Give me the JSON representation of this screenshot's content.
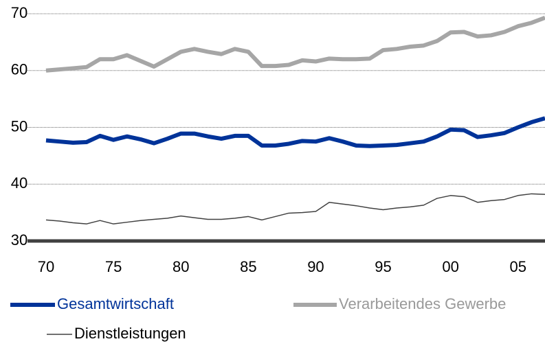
{
  "chart_data": {
    "type": "line",
    "x": [
      1970,
      1971,
      1972,
      1973,
      1974,
      1975,
      1976,
      1977,
      1978,
      1979,
      1980,
      1981,
      1982,
      1983,
      1984,
      1985,
      1986,
      1987,
      1988,
      1989,
      1990,
      1991,
      1992,
      1993,
      1994,
      1995,
      1996,
      1997,
      1998,
      1999,
      2000,
      2001,
      2002,
      2003,
      2004,
      2005,
      2006,
      2007
    ],
    "series": [
      {
        "name": "Gesamtwirtschaft",
        "color": "#003399",
        "width": 6,
        "values": [
          47.7,
          47.5,
          47.3,
          47.4,
          48.5,
          47.8,
          48.4,
          47.9,
          47.2,
          48,
          48.9,
          48.9,
          48.4,
          48,
          48.5,
          48.5,
          46.8,
          46.8,
          47.1,
          47.6,
          47.5,
          48.1,
          47.5,
          46.8,
          46.7,
          46.8,
          46.9,
          47.2,
          47.5,
          48.4,
          49.6,
          49.5,
          48.3,
          48.6,
          49,
          50,
          50.9,
          51.6
        ]
      },
      {
        "name": "Verarbeitendes Gewerbe",
        "color": "#a6a6a6",
        "width": 6,
        "values": [
          60,
          60.2,
          60.4,
          60.6,
          62,
          62,
          62.7,
          61.7,
          60.7,
          62,
          63.3,
          63.8,
          63.3,
          62.9,
          63.8,
          63.3,
          60.8,
          60.8,
          61,
          61.8,
          61.6,
          62.1,
          62,
          62,
          62.1,
          63.6,
          63.8,
          64.2,
          64.4,
          65.2,
          66.7,
          66.8,
          66,
          66.2,
          66.8,
          67.8,
          68.4,
          69.3
        ]
      },
      {
        "name": "Dienstleistungen",
        "color": "#404040",
        "width": 1.5,
        "values": [
          33.7,
          33.5,
          33.2,
          33,
          33.6,
          33,
          33.3,
          33.6,
          33.8,
          34,
          34.4,
          34.1,
          33.8,
          33.8,
          34,
          34.3,
          33.7,
          34.3,
          34.9,
          35,
          35.2,
          36.8,
          36.5,
          36.2,
          35.8,
          35.5,
          35.8,
          36,
          36.3,
          37.5,
          38,
          37.8,
          36.8,
          37.1,
          37.3,
          38,
          38.3,
          38.2
        ]
      }
    ],
    "xlim": [
      1970,
      2007
    ],
    "xticks": [
      {
        "value": 1970,
        "label": "70"
      },
      {
        "value": 1975,
        "label": "75"
      },
      {
        "value": 1980,
        "label": "80"
      },
      {
        "value": 1985,
        "label": "85"
      },
      {
        "value": 1990,
        "label": "90"
      },
      {
        "value": 1995,
        "label": "95"
      },
      {
        "value": 2000,
        "label": "00"
      },
      {
        "value": 2005,
        "label": "05"
      }
    ],
    "ylim": [
      30,
      70
    ],
    "yticks": [
      30,
      40,
      50,
      60,
      70
    ],
    "grid": true
  }
}
